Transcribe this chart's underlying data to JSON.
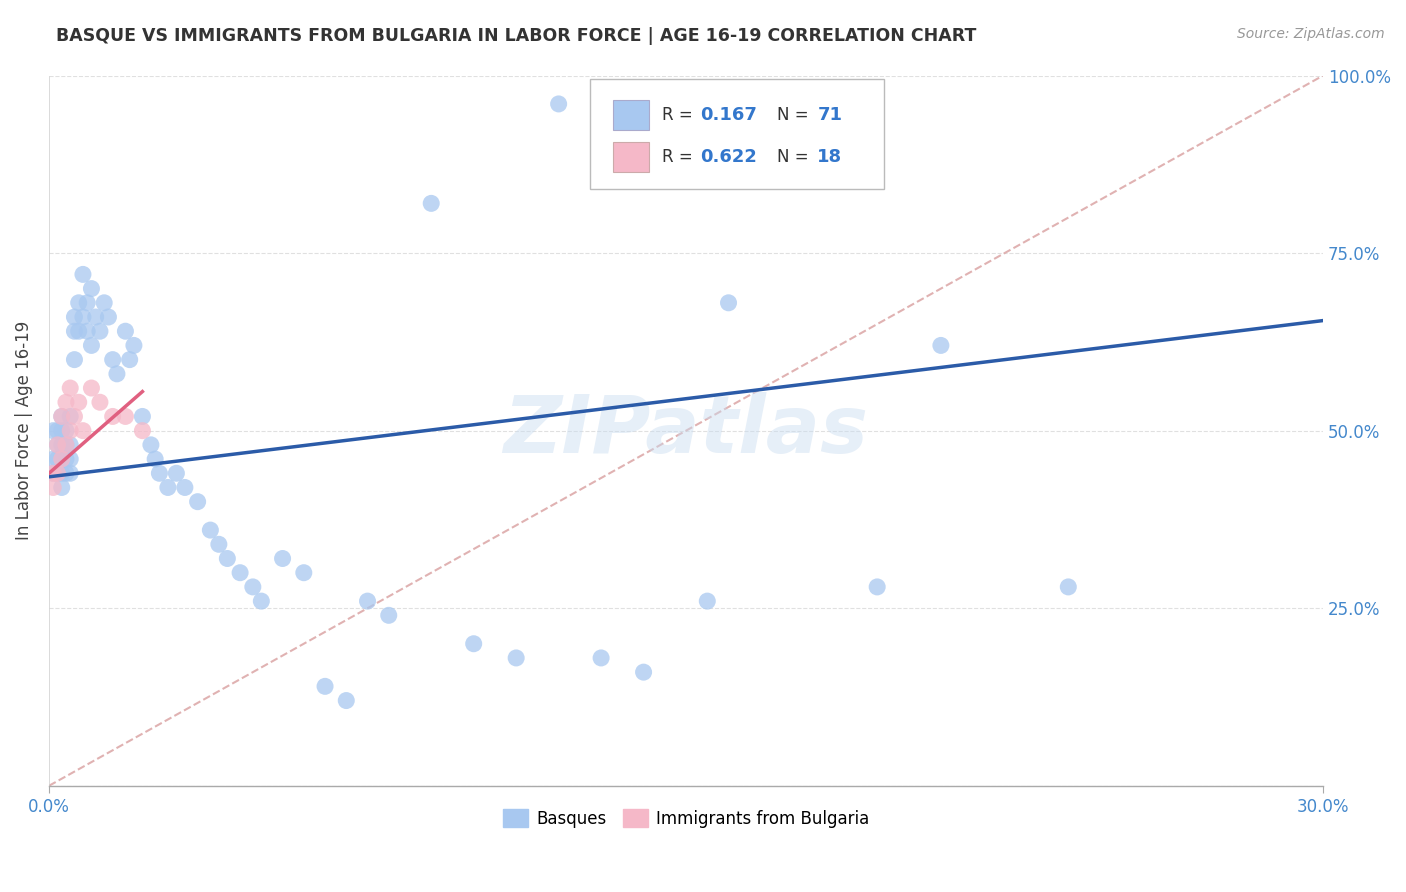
{
  "title": "BASQUE VS IMMIGRANTS FROM BULGARIA IN LABOR FORCE | AGE 16-19 CORRELATION CHART",
  "source": "Source: ZipAtlas.com",
  "ylabel": "In Labor Force | Age 16-19",
  "watermark": "ZIPatlas",
  "xlim": [
    0.0,
    0.3
  ],
  "ylim": [
    0.0,
    1.0
  ],
  "legend1_r": "0.167",
  "legend1_n": "71",
  "legend2_r": "0.622",
  "legend2_n": "18",
  "blue_color": "#A8C8F0",
  "pink_color": "#F5B8C8",
  "trend_blue": "#2B5BA8",
  "trend_pink": "#E06080",
  "ref_line_color": "#DDAAAA",
  "background_color": "#FFFFFF",
  "grid_color": "#DDDDDD",
  "basque_x": [
    0.001,
    0.001,
    0.001,
    0.002,
    0.002,
    0.002,
    0.002,
    0.003,
    0.003,
    0.003,
    0.003,
    0.003,
    0.004,
    0.004,
    0.004,
    0.004,
    0.005,
    0.005,
    0.005,
    0.005,
    0.006,
    0.006,
    0.006,
    0.007,
    0.007,
    0.008,
    0.008,
    0.009,
    0.009,
    0.01,
    0.01,
    0.011,
    0.012,
    0.013,
    0.014,
    0.015,
    0.016,
    0.018,
    0.019,
    0.02,
    0.022,
    0.024,
    0.025,
    0.026,
    0.028,
    0.03,
    0.032,
    0.035,
    0.038,
    0.04,
    0.042,
    0.045,
    0.048,
    0.05,
    0.055,
    0.06,
    0.065,
    0.07,
    0.075,
    0.08,
    0.09,
    0.1,
    0.11,
    0.12,
    0.13,
    0.14,
    0.155,
    0.16,
    0.195,
    0.21,
    0.24
  ],
  "basque_y": [
    0.5,
    0.46,
    0.44,
    0.5,
    0.48,
    0.46,
    0.44,
    0.52,
    0.5,
    0.48,
    0.44,
    0.42,
    0.5,
    0.48,
    0.46,
    0.44,
    0.52,
    0.48,
    0.46,
    0.44,
    0.66,
    0.64,
    0.6,
    0.68,
    0.64,
    0.72,
    0.66,
    0.68,
    0.64,
    0.7,
    0.62,
    0.66,
    0.64,
    0.68,
    0.66,
    0.6,
    0.58,
    0.64,
    0.6,
    0.62,
    0.52,
    0.48,
    0.46,
    0.44,
    0.42,
    0.44,
    0.42,
    0.4,
    0.36,
    0.34,
    0.32,
    0.3,
    0.28,
    0.26,
    0.32,
    0.3,
    0.14,
    0.12,
    0.26,
    0.24,
    0.82,
    0.2,
    0.18,
    0.96,
    0.18,
    0.16,
    0.26,
    0.68,
    0.28,
    0.62,
    0.28
  ],
  "bulgaria_x": [
    0.001,
    0.001,
    0.002,
    0.002,
    0.003,
    0.003,
    0.004,
    0.004,
    0.005,
    0.005,
    0.006,
    0.007,
    0.008,
    0.01,
    0.012,
    0.015,
    0.018,
    0.022
  ],
  "bulgaria_y": [
    0.44,
    0.42,
    0.48,
    0.44,
    0.52,
    0.46,
    0.54,
    0.48,
    0.56,
    0.5,
    0.52,
    0.54,
    0.5,
    0.56,
    0.54,
    0.52,
    0.52,
    0.5
  ],
  "blue_trend_x0": 0.0,
  "blue_trend_x1": 0.3,
  "blue_trend_y0": 0.435,
  "blue_trend_y1": 0.655,
  "pink_trend_x0": 0.0,
  "pink_trend_x1": 0.022,
  "pink_trend_y0": 0.44,
  "pink_trend_y1": 0.555,
  "ref_line_x0": 0.0,
  "ref_line_y0": 0.0,
  "ref_line_x1": 0.3,
  "ref_line_y1": 1.0
}
